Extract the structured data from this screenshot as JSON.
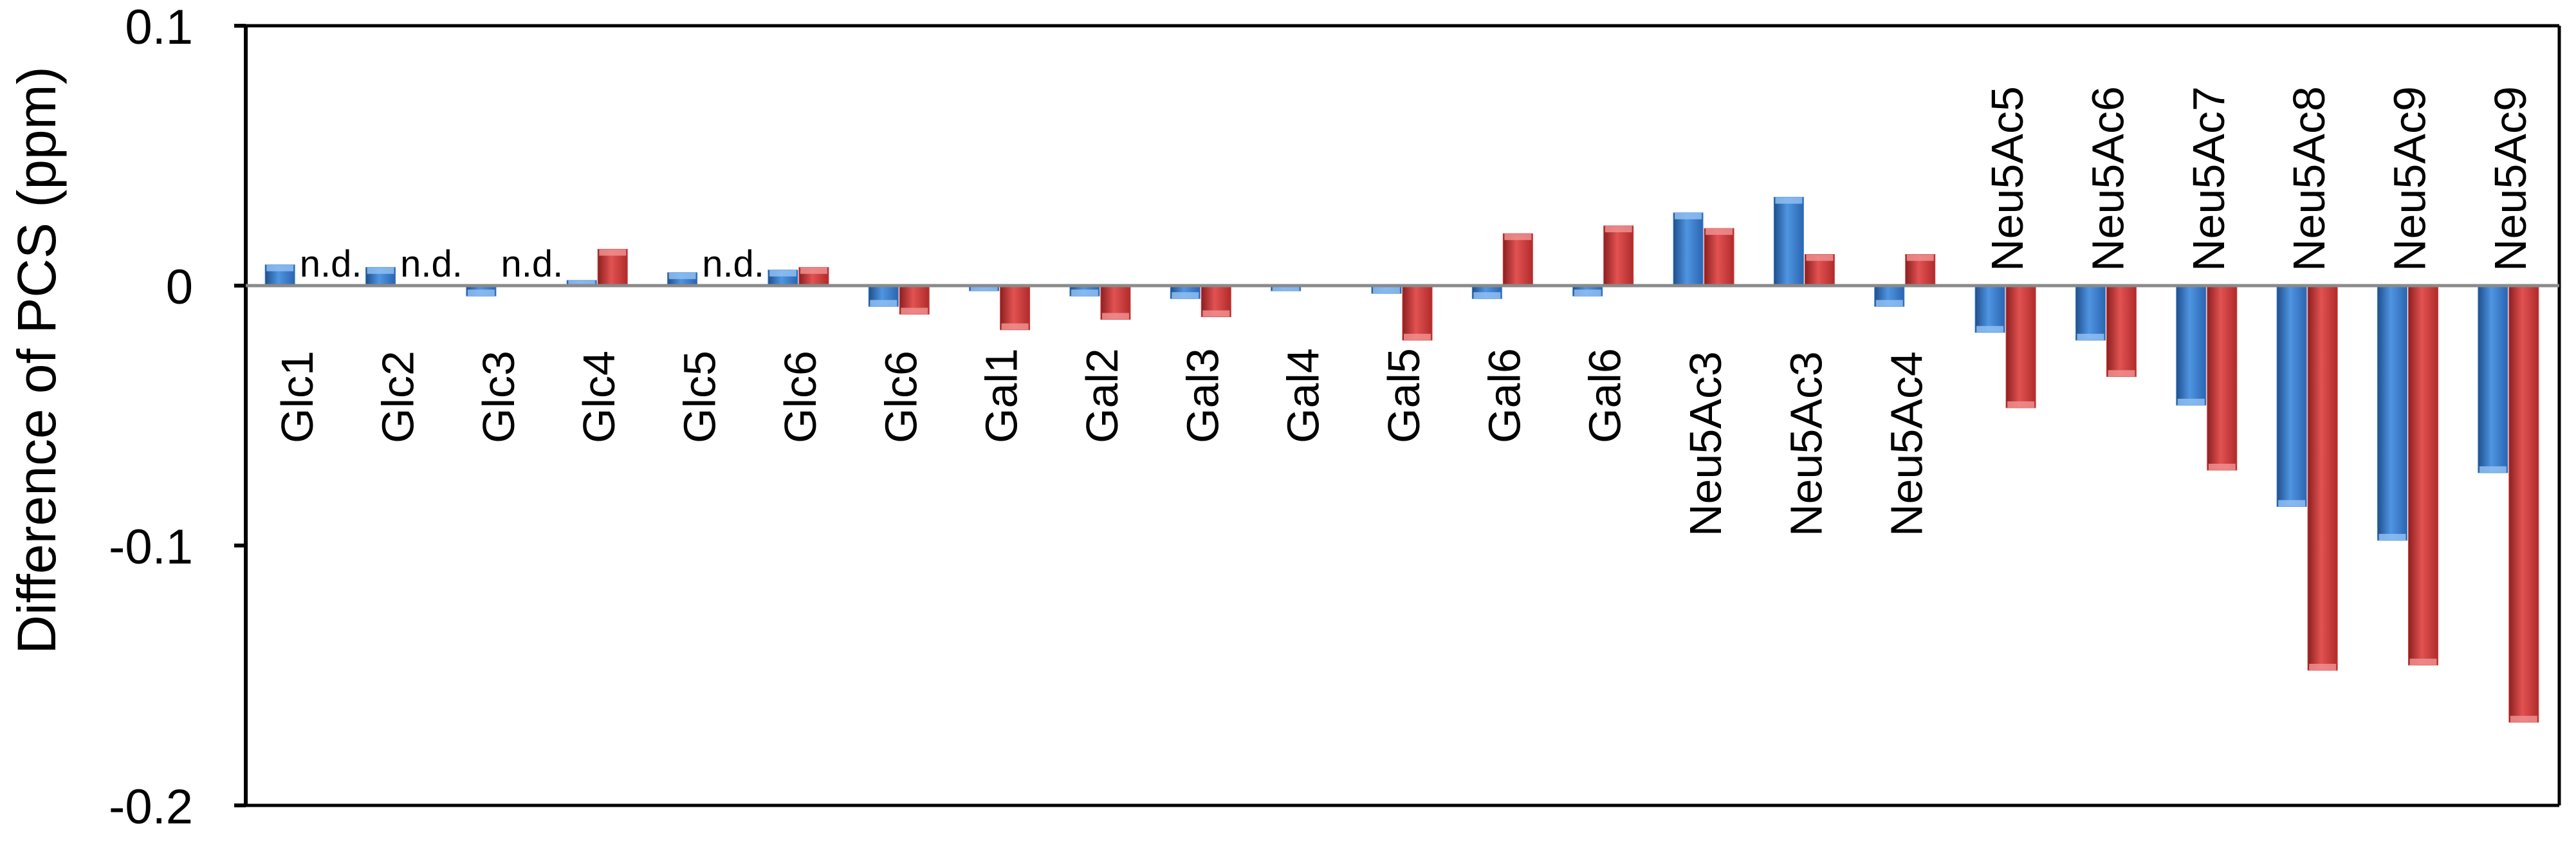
{
  "chart_data": {
    "type": "bar",
    "ylabel": "Difference of PCS (ppm)",
    "ylim": [
      -0.2,
      0.1
    ],
    "yticks": [
      0.1,
      0,
      -0.1,
      -0.2
    ],
    "ytick_labels": [
      "0.1",
      "0",
      "-0.1",
      "-0.2"
    ],
    "categories": [
      "Glc1",
      "Glc2",
      "Glc3",
      "Glc4",
      "Glc5",
      "Glc6",
      "Glc6",
      "Gal1",
      "Gal2",
      "Gal3",
      "Gal4",
      "Gal5",
      "Gal6",
      "Gal6",
      "Neu5Ac3",
      "Neu5Ac3",
      "Neu5Ac4",
      "Neu5Ac5",
      "Neu5Ac6",
      "Neu5Ac7",
      "Neu5Ac8",
      "Neu5Ac9",
      "Neu5Ac9"
    ],
    "series": [
      {
        "color": "#3a7fd0",
        "values": [
          0.008,
          0.007,
          -0.004,
          0.002,
          0.005,
          0.006,
          -0.008,
          -0.002,
          -0.004,
          -0.005,
          -0.002,
          -0.003,
          -0.005,
          -0.004,
          0.028,
          0.034,
          -0.008,
          -0.018,
          -0.021,
          -0.046,
          -0.085,
          -0.098,
          -0.072
        ]
      },
      {
        "color": "#d23d3d",
        "values": [
          null,
          null,
          null,
          0.014,
          null,
          0.007,
          -0.011,
          -0.017,
          -0.013,
          -0.012,
          null,
          -0.021,
          0.02,
          0.023,
          0.022,
          0.012,
          0.012,
          -0.047,
          -0.035,
          -0.071,
          -0.148,
          -0.146,
          -0.168
        ]
      }
    ],
    "annotations": [
      {
        "category_index": 0,
        "text": "n.d."
      },
      {
        "category_index": 1,
        "text": "n.d."
      },
      {
        "category_index": 2,
        "text": "n.d."
      },
      {
        "category_index": 4,
        "text": "n.d."
      }
    ],
    "grid": false,
    "legend": "none"
  }
}
